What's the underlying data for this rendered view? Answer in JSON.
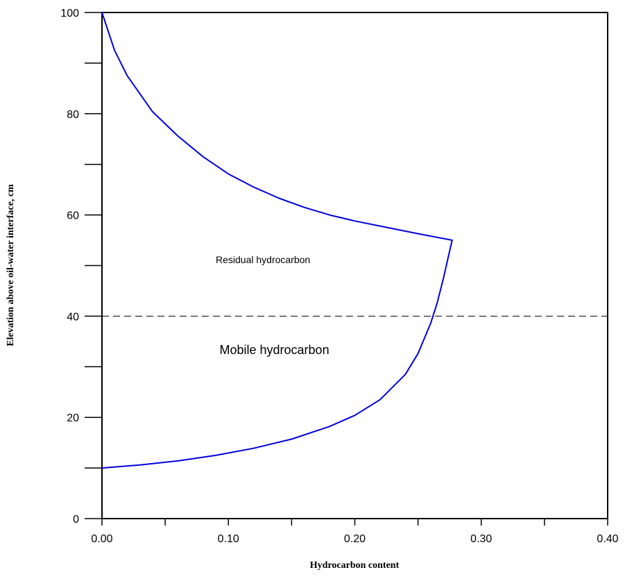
{
  "chart_data": {
    "type": "line",
    "title": "",
    "xlabel": "Hydrocarbon content",
    "ylabel": "Elevation above oil-water interface, cm",
    "xlim": [
      0,
      0.4
    ],
    "ylim": [
      0,
      100
    ],
    "x_ticks": [
      0,
      0.1,
      0.2,
      0.3,
      0.4
    ],
    "x_tick_labels": [
      "0.00",
      "0.10",
      "0.20",
      "0.30",
      "0.40"
    ],
    "x_minor_ticks": [
      0.05,
      0.15,
      0.25,
      0.35
    ],
    "y_ticks": [
      0,
      20,
      40,
      60,
      80,
      100
    ],
    "y_tick_labels": [
      "0",
      "20",
      "40",
      "60",
      "80",
      "100"
    ],
    "y_minor_ticks": [
      10,
      30,
      50,
      70,
      90
    ],
    "grid": false,
    "series": [
      {
        "style": "solid",
        "color": "#0000dd",
        "points": [
          [
            0.0,
            10.0
          ],
          [
            0.03,
            10.6
          ],
          [
            0.06,
            11.4
          ],
          [
            0.09,
            12.5
          ],
          [
            0.12,
            13.9
          ],
          [
            0.15,
            15.7
          ],
          [
            0.18,
            18.2
          ],
          [
            0.2,
            20.4
          ],
          [
            0.22,
            23.5
          ],
          [
            0.24,
            28.5
          ],
          [
            0.25,
            32.6
          ],
          [
            0.26,
            38.6
          ],
          [
            0.265,
            42.5
          ],
          [
            0.27,
            47.4
          ],
          [
            0.274,
            51.8
          ],
          [
            0.277,
            55.0
          ],
          [
            0.25,
            56.3
          ],
          [
            0.22,
            57.8
          ],
          [
            0.2,
            58.8
          ],
          [
            0.18,
            60.0
          ],
          [
            0.16,
            61.5
          ],
          [
            0.14,
            63.3
          ],
          [
            0.12,
            65.5
          ],
          [
            0.1,
            68.1
          ],
          [
            0.08,
            71.5
          ],
          [
            0.06,
            75.6
          ],
          [
            0.04,
            80.4
          ],
          [
            0.02,
            87.5
          ],
          [
            0.01,
            92.5
          ],
          [
            0.0,
            100.0
          ]
        ]
      },
      {
        "style": "dashed",
        "color": "#000000",
        "points": [
          [
            0,
            40
          ],
          [
            0.4,
            40
          ]
        ]
      }
    ],
    "annotations": [
      {
        "text": "Residual hydrocarbon",
        "x": 0.09,
        "y": 50.5,
        "size": "small"
      },
      {
        "text": "Mobile hydrocarbon",
        "x": 0.093,
        "y": 32.5,
        "size": "large"
      }
    ]
  }
}
